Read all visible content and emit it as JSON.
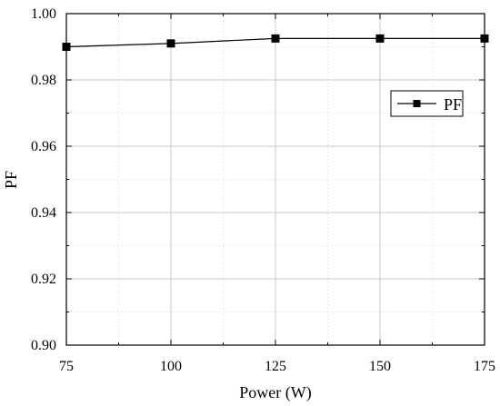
{
  "chart_data": {
    "type": "line",
    "title": "",
    "xlabel": "Power (W)",
    "ylabel": "PF",
    "x": [
      75,
      100,
      125,
      150,
      175
    ],
    "series": [
      {
        "name": "PF",
        "values": [
          0.99,
          0.991,
          0.9925,
          0.9925,
          0.9925
        ]
      }
    ],
    "xlim": [
      75,
      175
    ],
    "ylim": [
      0.9,
      1.0
    ],
    "x_ticks": [
      "75",
      "100",
      "125",
      "150",
      "175"
    ],
    "y_ticks": [
      "0.90",
      "0.92",
      "0.94",
      "0.96",
      "0.98",
      "1.00"
    ],
    "grid": true,
    "legend_position": "top-right",
    "colors": {
      "line": "#000000",
      "marker": "#000000",
      "major_grid": "#c8c8c8",
      "minor_grid": "#d8d8d8",
      "axis": "#000000"
    }
  }
}
